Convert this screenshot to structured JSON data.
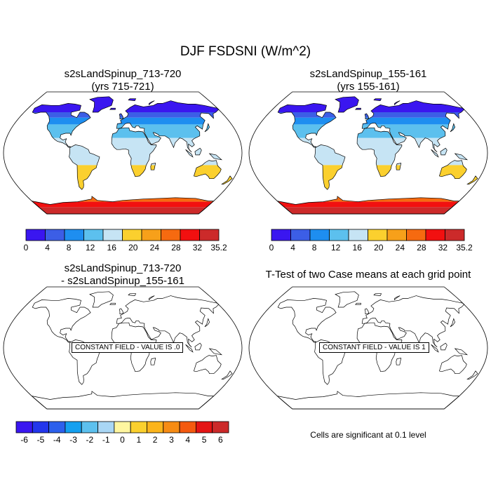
{
  "title": "DJF FSDSNI (W/m^2)",
  "panels": [
    {
      "title_line1": "s2sLandSpinup_713-720",
      "title_line2": "(yrs 715-721)"
    },
    {
      "title_line1": "s2sLandSpinup_155-161",
      "title_line2": "(yrs 155-161)"
    },
    {
      "title_line1": "s2sLandSpinup_713-720",
      "title_line2": "- s2sLandSpinup_155-161"
    },
    {
      "title_line1": "T-Test of two Case means at each grid point",
      "title_line2": ""
    }
  ],
  "constant_labels": {
    "diff": "CONSTANT FIELD - VALUE IS .0",
    "ttest": "CONSTANT FIELD - VALUE IS 1"
  },
  "significance_note": "Cells are significant at 0.1 level",
  "colorbar_main": {
    "labels": [
      "0",
      "4",
      "8",
      "12",
      "16",
      "20",
      "24",
      "28",
      "32",
      "35.2"
    ],
    "colors": [
      "#3a16f0",
      "#3c5ee6",
      "#1e8ef0",
      "#5cc0ee",
      "#c6e4f4",
      "#fbd02e",
      "#f7a01a",
      "#f66a10",
      "#f21010",
      "#cc2a2a"
    ]
  },
  "colorbar_diff": {
    "labels": [
      "-6",
      "-5",
      "-4",
      "-3",
      "-2",
      "-1",
      "0",
      "1",
      "2",
      "3",
      "4",
      "5",
      "6"
    ],
    "colors": [
      "#3a16f0",
      "#2336ec",
      "#2c60ec",
      "#14a0f0",
      "#5cc0ee",
      "#a9d6f4",
      "#fff6a0",
      "#fbd02e",
      "#fbb41c",
      "#f78c14",
      "#f45a10",
      "#e41414",
      "#cc2a2a"
    ]
  },
  "map_colors": {
    "band_north": [
      "#3a16f0",
      "#3c5ee6",
      "#1e8ef0",
      "#5cc0ee",
      "#c6e4f4"
    ],
    "southern_mid": "#fbd02e",
    "antarctica": [
      "#f66a10",
      "#f21010",
      "#cc2a2a"
    ]
  }
}
